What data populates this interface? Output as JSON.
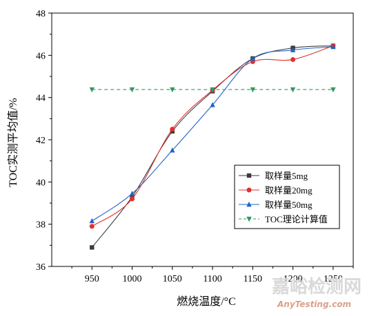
{
  "chart_data": {
    "type": "line",
    "title": "",
    "xlabel": "燃烧温度/°C",
    "ylabel": "TOC实测平均值/%",
    "x": [
      950,
      1000,
      1050,
      1100,
      1150,
      1200,
      1250
    ],
    "xlim": [
      900,
      1275
    ],
    "ylim": [
      36,
      48
    ],
    "xticks": [
      "950",
      "1000",
      "1050",
      "1100",
      "1150",
      "1200",
      "1250"
    ],
    "yticks": [
      "36",
      "38",
      "40",
      "42",
      "44",
      "46",
      "48"
    ],
    "grid": false,
    "legend_position": "center-right",
    "series": [
      {
        "name": "取样量5mg",
        "values": [
          36.9,
          39.3,
          42.4,
          44.3,
          45.85,
          46.35,
          46.45
        ],
        "color": "#3b3b3b",
        "marker": "square",
        "dash": "solid"
      },
      {
        "name": "取样量20mg",
        "values": [
          37.9,
          39.2,
          42.5,
          44.35,
          45.7,
          45.8,
          46.45
        ],
        "color": "#e0312e",
        "marker": "circle",
        "dash": "solid"
      },
      {
        "name": "取样量50mg",
        "values": [
          38.15,
          39.45,
          41.5,
          43.65,
          45.85,
          46.25,
          46.4
        ],
        "color": "#1f64c4",
        "marker": "triangle-up",
        "dash": "solid"
      },
      {
        "name": "TOC理论计算值",
        "values": [
          44.38,
          44.38,
          44.38,
          44.38,
          44.38,
          44.38,
          44.38
        ],
        "color": "#2e9b5f",
        "marker": "triangle-down",
        "dash": "dashed"
      }
    ]
  },
  "watermark": {
    "cn": "嘉峪检测网",
    "en": "AnyTesting.com"
  }
}
